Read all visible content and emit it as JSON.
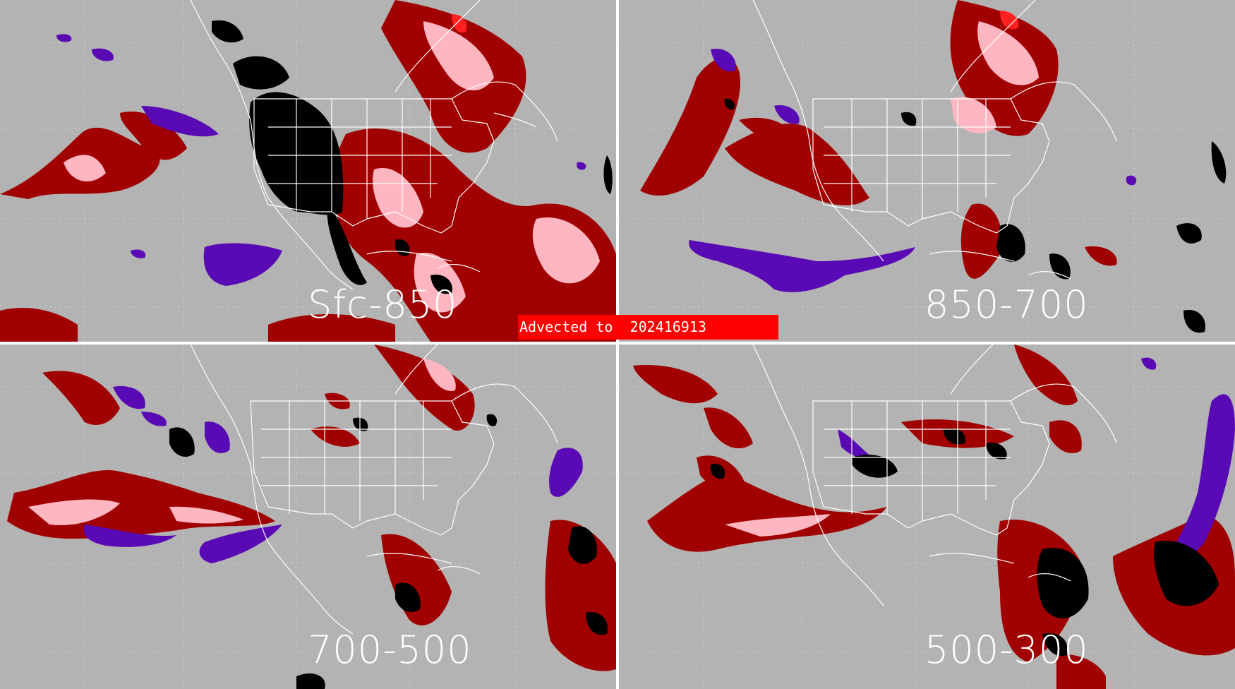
{
  "banner": {
    "text": "Advected to  202416913",
    "color": "#ff0000"
  },
  "panels": [
    {
      "id": "sfc-850",
      "label": "Sfc-850"
    },
    {
      "id": "850-700",
      "label": "850-700"
    },
    {
      "id": "700-500",
      "label": "700-500"
    },
    {
      "id": "500-300",
      "label": "500-300"
    }
  ],
  "colors": {
    "background": "#b3b3b3",
    "boundaries": "#ffffff",
    "dark_red": "#a00000",
    "pink": "#ffb6c1",
    "bright_red": "#ff2020",
    "purple": "#5a0ab4",
    "black": "#000000"
  }
}
